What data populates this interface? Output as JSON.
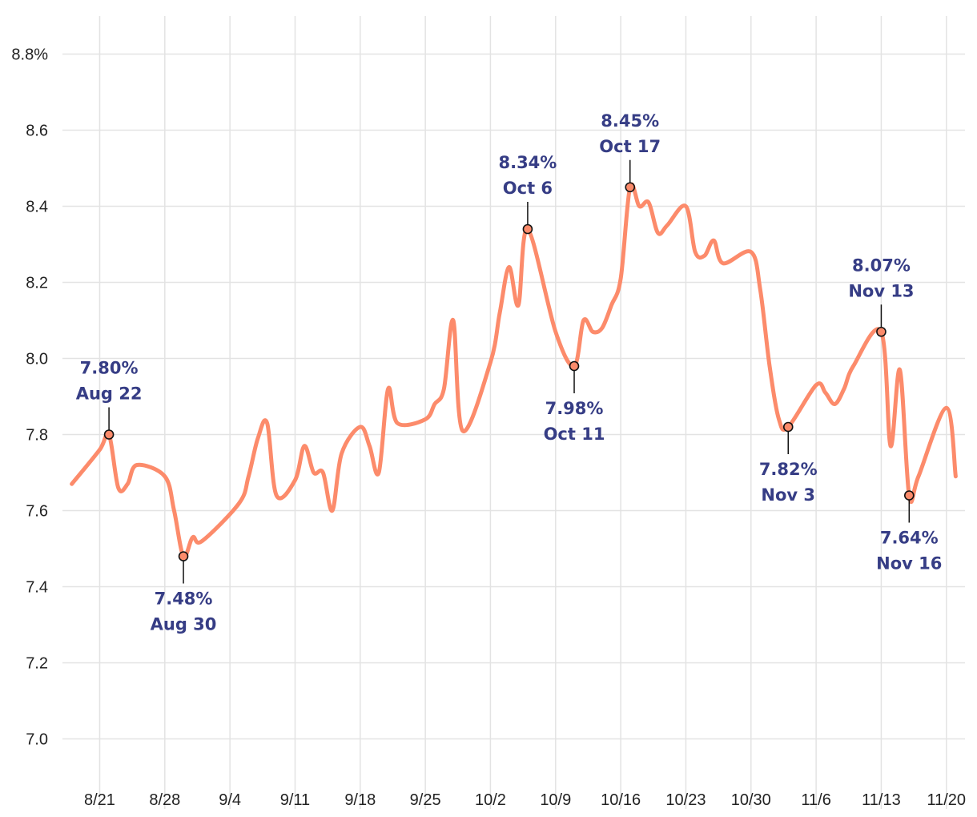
{
  "chart_data": {
    "type": "line",
    "colors": {
      "line": "#fc8b6b",
      "annotation": "#363d85",
      "grid": "#e3e3e3"
    },
    "xlim": [
      "2023-08-17",
      "2023-11-22"
    ],
    "ylim": [
      6.9,
      8.9
    ],
    "yticks": [
      {
        "value": 7.0,
        "label": "7.0"
      },
      {
        "value": 7.2,
        "label": "7.2"
      },
      {
        "value": 7.4,
        "label": "7.4"
      },
      {
        "value": 7.6,
        "label": "7.6"
      },
      {
        "value": 7.8,
        "label": "7.8"
      },
      {
        "value": 8.0,
        "label": "8.0"
      },
      {
        "value": 8.2,
        "label": "8.2"
      },
      {
        "value": 8.4,
        "label": "8.4"
      },
      {
        "value": 8.6,
        "label": "8.6"
      },
      {
        "value": 8.8,
        "label": "8.8%"
      }
    ],
    "xticks": [
      {
        "date": "2023-08-21",
        "label": "8/21"
      },
      {
        "date": "2023-08-28",
        "label": "8/28"
      },
      {
        "date": "2023-09-04",
        "label": "9/4"
      },
      {
        "date": "2023-09-11",
        "label": "9/11"
      },
      {
        "date": "2023-09-18",
        "label": "9/18"
      },
      {
        "date": "2023-09-25",
        "label": "9/25"
      },
      {
        "date": "2023-10-02",
        "label": "10/2"
      },
      {
        "date": "2023-10-09",
        "label": "10/9"
      },
      {
        "date": "2023-10-16",
        "label": "10/16"
      },
      {
        "date": "2023-10-23",
        "label": "10/23"
      },
      {
        "date": "2023-10-30",
        "label": "10/30"
      },
      {
        "date": "2023-11-06",
        "label": "11/6"
      },
      {
        "date": "2023-11-13",
        "label": "11/13"
      },
      {
        "date": "2023-11-20",
        "label": "11/20"
      }
    ],
    "series": [
      {
        "points": [
          [
            "2023-08-18",
            7.67
          ],
          [
            "2023-08-21",
            7.76
          ],
          [
            "2023-08-22",
            7.8
          ],
          [
            "2023-08-23",
            7.66
          ],
          [
            "2023-08-24",
            7.67
          ],
          [
            "2023-08-25",
            7.72
          ],
          [
            "2023-08-28",
            7.69
          ],
          [
            "2023-08-29",
            7.6
          ],
          [
            "2023-08-30",
            7.48
          ],
          [
            "2023-08-31",
            7.53
          ],
          [
            "2023-09-01",
            7.52
          ],
          [
            "2023-09-05",
            7.62
          ],
          [
            "2023-09-06",
            7.69
          ],
          [
            "2023-09-07",
            7.79
          ],
          [
            "2023-09-08",
            7.83
          ],
          [
            "2023-09-09",
            7.64
          ],
          [
            "2023-09-11",
            7.68
          ],
          [
            "2023-09-12",
            7.77
          ],
          [
            "2023-09-13",
            7.7
          ],
          [
            "2023-09-14",
            7.7
          ],
          [
            "2023-09-15",
            7.6
          ],
          [
            "2023-09-16",
            7.75
          ],
          [
            "2023-09-18",
            7.82
          ],
          [
            "2023-09-19",
            7.77
          ],
          [
            "2023-09-20",
            7.7
          ],
          [
            "2023-09-21",
            7.92
          ],
          [
            "2023-09-22",
            7.83
          ],
          [
            "2023-09-25",
            7.84
          ],
          [
            "2023-09-26",
            7.88
          ],
          [
            "2023-09-27",
            7.92
          ],
          [
            "2023-09-28",
            8.1
          ],
          [
            "2023-09-29",
            7.81
          ],
          [
            "2023-10-02",
            7.99
          ],
          [
            "2023-10-03",
            8.12
          ],
          [
            "2023-10-04",
            8.24
          ],
          [
            "2023-10-05",
            8.14
          ],
          [
            "2023-10-06",
            8.34
          ],
          [
            "2023-10-09",
            8.07
          ],
          [
            "2023-10-11",
            7.98
          ],
          [
            "2023-10-12",
            8.1
          ],
          [
            "2023-10-13",
            8.07
          ],
          [
            "2023-10-14",
            8.08
          ],
          [
            "2023-10-15",
            8.14
          ],
          [
            "2023-10-16",
            8.21
          ],
          [
            "2023-10-17",
            8.45
          ],
          [
            "2023-10-18",
            8.4
          ],
          [
            "2023-10-19",
            8.41
          ],
          [
            "2023-10-20",
            8.33
          ],
          [
            "2023-10-21",
            8.35
          ],
          [
            "2023-10-23",
            8.4
          ],
          [
            "2023-10-24",
            8.28
          ],
          [
            "2023-10-25",
            8.27
          ],
          [
            "2023-10-26",
            8.31
          ],
          [
            "2023-10-27",
            8.25
          ],
          [
            "2023-10-30",
            8.28
          ],
          [
            "2023-10-31",
            8.18
          ],
          [
            "2023-11-01",
            7.98
          ],
          [
            "2023-11-02",
            7.84
          ],
          [
            "2023-11-03",
            7.82
          ],
          [
            "2023-11-06",
            7.93
          ],
          [
            "2023-11-07",
            7.91
          ],
          [
            "2023-11-08",
            7.88
          ],
          [
            "2023-11-09",
            7.92
          ],
          [
            "2023-11-10",
            7.98
          ],
          [
            "2023-11-13",
            8.07
          ],
          [
            "2023-11-14",
            7.77
          ],
          [
            "2023-11-15",
            7.97
          ],
          [
            "2023-11-16",
            7.64
          ],
          [
            "2023-11-17",
            7.69
          ],
          [
            "2023-11-20",
            7.87
          ],
          [
            "2023-11-21",
            7.69
          ]
        ]
      }
    ],
    "annotations": [
      {
        "date": "2023-08-22",
        "value": 7.8,
        "value_label": "7.80%",
        "date_label": "Aug 22",
        "position": "above"
      },
      {
        "date": "2023-08-30",
        "value": 7.48,
        "value_label": "7.48%",
        "date_label": "Aug 30",
        "position": "below"
      },
      {
        "date": "2023-10-06",
        "value": 8.34,
        "value_label": "8.34%",
        "date_label": "Oct 6",
        "position": "above"
      },
      {
        "date": "2023-10-11",
        "value": 7.98,
        "value_label": "7.98%",
        "date_label": "Oct 11",
        "position": "below"
      },
      {
        "date": "2023-10-17",
        "value": 8.45,
        "value_label": "8.45%",
        "date_label": "Oct 17",
        "position": "above"
      },
      {
        "date": "2023-11-03",
        "value": 7.82,
        "value_label": "7.82%",
        "date_label": "Nov 3",
        "position": "below"
      },
      {
        "date": "2023-11-13",
        "value": 8.07,
        "value_label": "8.07%",
        "date_label": "Nov 13",
        "position": "above"
      },
      {
        "date": "2023-11-16",
        "value": 7.64,
        "value_label": "7.64%",
        "date_label": "Nov 16",
        "position": "below"
      }
    ],
    "grid": true,
    "legend": "none"
  }
}
